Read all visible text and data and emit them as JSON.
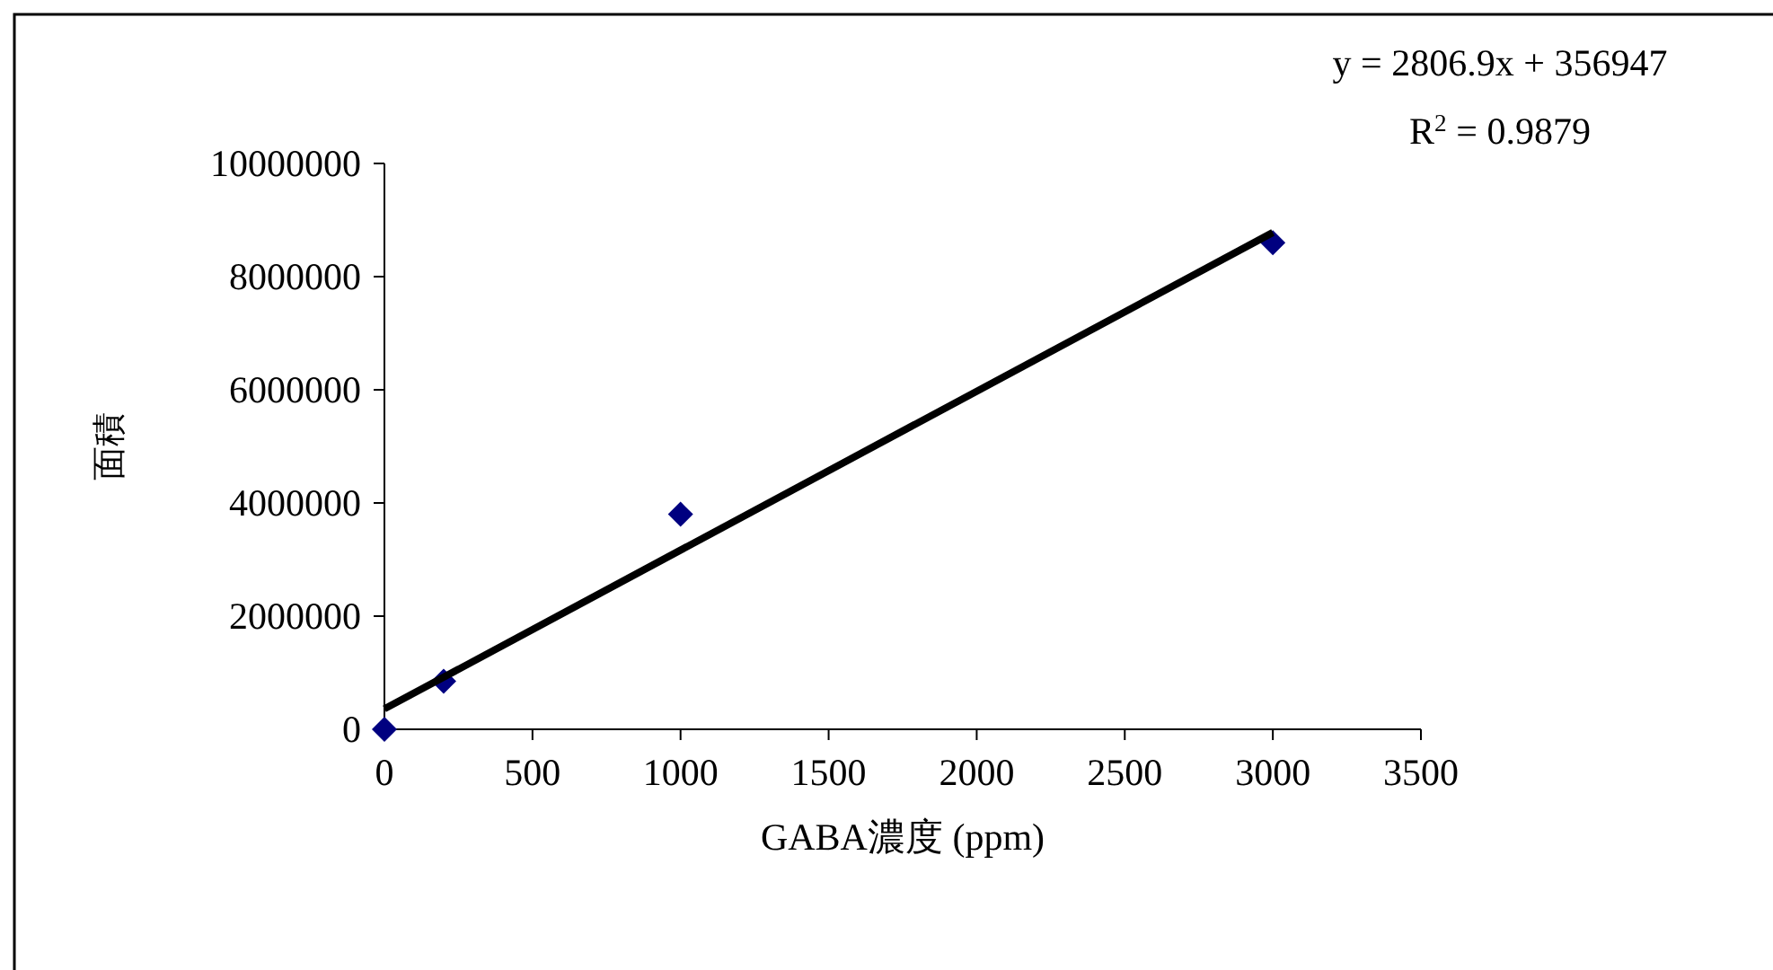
{
  "chart_data": {
    "type": "scatter",
    "xlabel": "GABA濃度 (ppm)",
    "ylabel": "面積",
    "x": [
      0,
      200,
      1000,
      3000
    ],
    "series": [
      {
        "color": "#000080",
        "marker": "diamond",
        "values": [
          0,
          850000,
          3800000,
          8600000
        ]
      },
      {
        "type": "line",
        "x": [
          0,
          3000
        ],
        "color": "#000000",
        "line_style": "solid",
        "values": [
          360000,
          8780000
        ]
      }
    ],
    "xlim": [
      0,
      3500
    ],
    "ylim": [
      0,
      10000000
    ],
    "xticks": [
      0,
      500,
      1000,
      1500,
      2000,
      2500,
      3000,
      3500
    ],
    "yticks": [
      0,
      2000000,
      4000000,
      6000000,
      8000000,
      10000000
    ],
    "grid": false,
    "annotations": [
      "y = 2806.9x + 356947",
      "R$^{2}$ = 0.9879"
    ]
  }
}
